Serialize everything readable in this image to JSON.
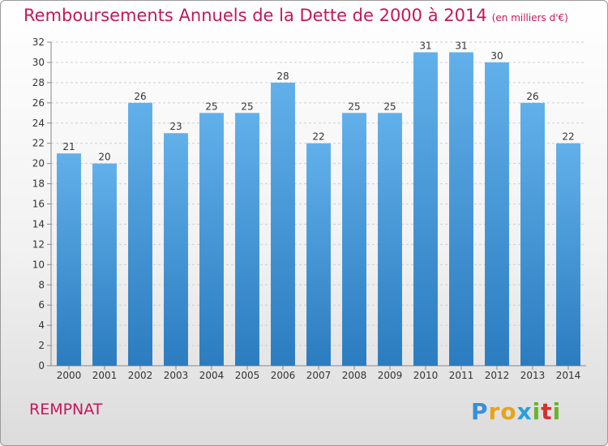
{
  "title": {
    "main": "Remboursements Annuels de la Dette de 2000 à 2014",
    "unit": "(en milliers d'€)"
  },
  "commune": "REMPNAT",
  "logo": {
    "letters": [
      "P",
      "r",
      "o",
      "x",
      "i",
      "t",
      "i"
    ],
    "colors": [
      "#3a8fd6",
      "#e8a21a",
      "#e8a21a",
      "#2a9fd8",
      "#6ab32d",
      "#d62f2f",
      "#6ab32d"
    ]
  },
  "colors": {
    "bar_top": "#62b0ea",
    "bar_bottom": "#2b7cc0",
    "title": "#c2185b"
  },
  "chart_data": {
    "type": "bar",
    "categories": [
      "2000",
      "2001",
      "2002",
      "2003",
      "2004",
      "2005",
      "2006",
      "2007",
      "2008",
      "2009",
      "2010",
      "2011",
      "2012",
      "2013",
      "2014"
    ],
    "values": [
      21,
      20,
      26,
      23,
      25,
      25,
      28,
      22,
      25,
      25,
      31,
      31,
      30,
      26,
      22
    ],
    "yticks": [
      "0",
      "2",
      "4",
      "6",
      "8",
      "10",
      "12",
      "14",
      "16",
      "18",
      "20",
      "22",
      "24",
      "26",
      "28",
      "30",
      "32"
    ],
    "ylim": [
      0,
      32
    ],
    "grid": true,
    "xlabel": "",
    "ylabel": ""
  }
}
